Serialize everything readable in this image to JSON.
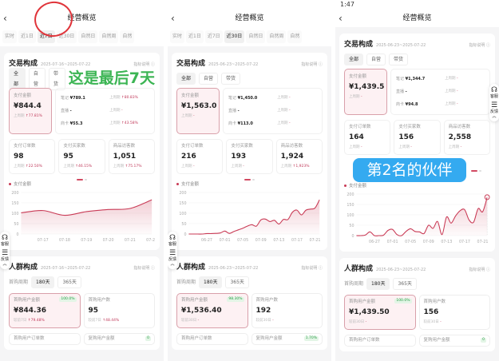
{
  "panels": [
    {
      "status_time": "",
      "title": "经营概览",
      "tabs": [
        "实时",
        "近1日",
        "近7日",
        "近30日",
        "自然日",
        "自然周",
        "自然"
      ],
      "active_tab": 2,
      "trade": {
        "title": "交易构成",
        "date": "2025-07-16~2025-07-22",
        "help": "指标说明 ⓘ",
        "filters": [
          "全部",
          "自营",
          "带货"
        ],
        "main": {
          "label": "支付金额",
          "value": "¥844.4",
          "cmp_label": "上周期",
          "cmp": "↑77.81%"
        },
        "breakdown": [
          {
            "name": "笔记",
            "value": "¥789.1",
            "cmp_label": "上周期",
            "cmp": "↑80.83%"
          },
          {
            "name": "直播",
            "value": "-",
            "cmp_label": "上周期",
            "cmp": "-"
          },
          {
            "name": "商卡",
            "value": "¥55.3",
            "cmp_label": "上周期",
            "cmp": "↑43.58%"
          }
        ],
        "cards": [
          {
            "label": "支付订单数",
            "value": "98",
            "cmp_label": "上周期",
            "cmp": "↑22.50%"
          },
          {
            "label": "支付买家数",
            "value": "95",
            "cmp_label": "上周期",
            "cmp": "↑46.15%"
          },
          {
            "label": "商品访客数",
            "value": "1,051",
            "cmp_label": "上周期",
            "cmp": "↑75.17%"
          }
        ]
      },
      "chart_data": {
        "type": "area",
        "legend": "支付金额",
        "x": [
          "07-16",
          "07-17",
          "07-18",
          "07-19",
          "07-20",
          "07-21",
          "07-22"
        ],
        "values": [
          102,
          113,
          90,
          108,
          118,
          123,
          165
        ],
        "x_ticks": [
          "07-17",
          "07-18",
          "07-19",
          "07-20",
          "07-21",
          "07-22"
        ],
        "y_ticks": [
          0,
          50,
          100,
          150,
          200
        ],
        "ylim": [
          0,
          200
        ],
        "color": "#c93a55"
      },
      "crowd": {
        "title": "人群构成",
        "date": "2025-07-16~2025-07-22",
        "help": "指标说明 ⓘ",
        "period_label": "首购周期",
        "periods": [
          "180天",
          "365天"
        ],
        "cards": [
          {
            "label": "首购用户金额",
            "value": "¥844.36",
            "badge": "100.0%",
            "cmp_label": "较前7日",
            "cmp": "↑79.48%"
          },
          {
            "label": "首购用户数",
            "value": "95",
            "badge": "",
            "cmp_label": "较前7日",
            "cmp": "↑48.44%"
          },
          {
            "label": "首购用户订单数",
            "value": "",
            "badge": "",
            "cmp_label": "",
            "cmp": ""
          },
          {
            "label": "复购用户金额",
            "value": "",
            "badge": "0",
            "cmp_label": "",
            "cmp": ""
          }
        ]
      }
    },
    {
      "status_time": "",
      "title": "经营概览",
      "tabs": [
        "实时",
        "近1日",
        "近7日",
        "近30日",
        "自然日",
        "自然周",
        "自然"
      ],
      "active_tab": 3,
      "trade": {
        "title": "交易构成",
        "date": "2025-06-23~2025-07-22",
        "help": "指标说明 ⓘ",
        "filters": [
          "全部",
          "自营",
          "带货"
        ],
        "main": {
          "label": "支付金额",
          "value": "¥1,563.0",
          "cmp_label": "上周期",
          "cmp": "-"
        },
        "breakdown": [
          {
            "name": "笔记",
            "value": "¥1,450.0",
            "cmp_label": "上周期",
            "cmp": "-"
          },
          {
            "name": "直播",
            "value": "-",
            "cmp_label": "上周期",
            "cmp": "-"
          },
          {
            "name": "商卡",
            "value": "¥113.0",
            "cmp_label": "上周期",
            "cmp": "-"
          }
        ],
        "cards": [
          {
            "label": "支付订单数",
            "value": "216",
            "cmp_label": "上周期",
            "cmp": "-"
          },
          {
            "label": "支付买家数",
            "value": "193",
            "cmp_label": "上周期",
            "cmp": "-"
          },
          {
            "label": "商品访客数",
            "value": "1,924",
            "cmp_label": "上周期",
            "cmp": "↑1,923%"
          }
        ]
      },
      "chart_data": {
        "type": "area",
        "legend": "支付金额",
        "x": [
          "06-23",
          "06-24",
          "06-25",
          "06-26",
          "06-27",
          "06-28",
          "06-29",
          "06-30",
          "07-01",
          "07-02",
          "07-03",
          "07-04",
          "07-05",
          "07-06",
          "07-07",
          "07-08",
          "07-09",
          "07-10",
          "07-11",
          "07-12",
          "07-13",
          "07-14",
          "07-15",
          "07-16",
          "07-17",
          "07-18",
          "07-19",
          "07-20",
          "07-21",
          "07-22"
        ],
        "values": [
          0,
          0,
          0,
          0,
          2,
          2,
          3,
          5,
          14,
          3,
          12,
          20,
          28,
          38,
          45,
          38,
          68,
          72,
          60,
          66,
          48,
          70,
          70,
          105,
          115,
          92,
          115,
          120,
          125,
          165
        ],
        "x_ticks": [
          "06-27",
          "07-01",
          "07-05",
          "07-09",
          "07-13",
          "07-17",
          "07-21"
        ],
        "y_ticks": [
          0,
          50,
          100,
          150,
          200
        ],
        "ylim": [
          0,
          200
        ],
        "color": "#c93a55"
      },
      "crowd": {
        "title": "人群构成",
        "date": "2025-06-23~2025-07-22",
        "help": "指标说明 ⓘ",
        "period_label": "首购周期",
        "periods": [
          "180天",
          "365天"
        ],
        "cards": [
          {
            "label": "首购用户金额",
            "value": "¥1,536.40",
            "badge": "98.30%",
            "cmp_label": "较前30日",
            "cmp": "-"
          },
          {
            "label": "首购用户数",
            "value": "192",
            "badge": "",
            "cmp_label": "较前30日",
            "cmp": "-"
          },
          {
            "label": "首购用户订单数",
            "value": "",
            "badge": "",
            "cmp_label": "",
            "cmp": ""
          },
          {
            "label": "复购用户金额",
            "value": "",
            "badge": "1.70%",
            "cmp_label": "",
            "cmp": ""
          }
        ]
      }
    },
    {
      "status_time": "1:47",
      "title": "经营概览",
      "tabs": [],
      "active_tab": -1,
      "trade": {
        "title": "交易构成",
        "date": "2025-06-23~2025-07-22",
        "help": "指标说明 ⓘ",
        "filters": [
          "全部",
          "自营",
          "带货"
        ],
        "main": {
          "label": "支付金额",
          "value": "¥1,439.5",
          "cmp_label": "上周期",
          "cmp": "-"
        },
        "breakdown": [
          {
            "name": "笔记",
            "value": "¥1,344.7",
            "cmp_label": "上周期",
            "cmp": "-"
          },
          {
            "name": "直播",
            "value": "-",
            "cmp_label": "上周期",
            "cmp": "-"
          },
          {
            "name": "商卡",
            "value": "¥94.8",
            "cmp_label": "上周期",
            "cmp": "-"
          }
        ],
        "cards": [
          {
            "label": "支付订单数",
            "value": "164",
            "cmp_label": "上周期",
            "cmp": "-"
          },
          {
            "label": "支付买家数",
            "value": "156",
            "cmp_label": "上周期",
            "cmp": "-"
          },
          {
            "label": "商品访客数",
            "value": "2,558",
            "cmp_label": "上周期",
            "cmp": "-"
          }
        ]
      },
      "chart_data": {
        "type": "area",
        "legend": "支付金额",
        "x": [
          "06-23",
          "06-24",
          "06-25",
          "06-26",
          "06-27",
          "06-28",
          "06-29",
          "06-30",
          "07-01",
          "07-02",
          "07-03",
          "07-04",
          "07-05",
          "07-06",
          "07-07",
          "07-08",
          "07-09",
          "07-10",
          "07-11",
          "07-12",
          "07-13",
          "07-14",
          "07-15",
          "07-16",
          "07-17",
          "07-18",
          "07-19",
          "07-20",
          "07-21",
          "07-22"
        ],
        "values": [
          0,
          0,
          3,
          18,
          0,
          0,
          2,
          25,
          30,
          5,
          0,
          20,
          33,
          20,
          18,
          10,
          50,
          35,
          68,
          5,
          90,
          60,
          95,
          120,
          125,
          75,
          65,
          130,
          115,
          185
        ],
        "x_ticks": [
          "06-27",
          "07-01",
          "07-05",
          "07-09",
          "07-13",
          "07-17",
          "07-21"
        ],
        "y_ticks": [
          0,
          50,
          100,
          150,
          200
        ],
        "ylim": [
          0,
          200
        ],
        "color": "#c93a55"
      },
      "crowd": {
        "title": "人群构成",
        "date": "2025-06-23~2025-07-22",
        "help": "指标说明 ⓘ",
        "period_label": "首购周期",
        "periods": [
          "180天",
          "365天"
        ],
        "cards": [
          {
            "label": "首购用户金额",
            "value": "¥1,439.50",
            "badge": "100.0%",
            "cmp_label": "较前30日",
            "cmp": "-"
          },
          {
            "label": "首购用户数",
            "value": "156",
            "badge": "",
            "cmp_label": "较前30日",
            "cmp": "-"
          },
          {
            "label": "首购用户订单数",
            "value": "",
            "badge": "",
            "cmp_label": "",
            "cmp": ""
          },
          {
            "label": "复购用户金额",
            "value": "",
            "badge": "0",
            "cmp_label": "",
            "cmp": ""
          }
        ]
      }
    }
  ],
  "float_menu": {
    "service": "客服",
    "feedback": "反馈"
  },
  "annotations": {
    "panel1_note": "这是最后7天",
    "panel3_banner": "第2名的伙伴",
    "circle_color": "#e0343a",
    "note_color": "#3cb554",
    "banner_color": "#34aaf0"
  }
}
